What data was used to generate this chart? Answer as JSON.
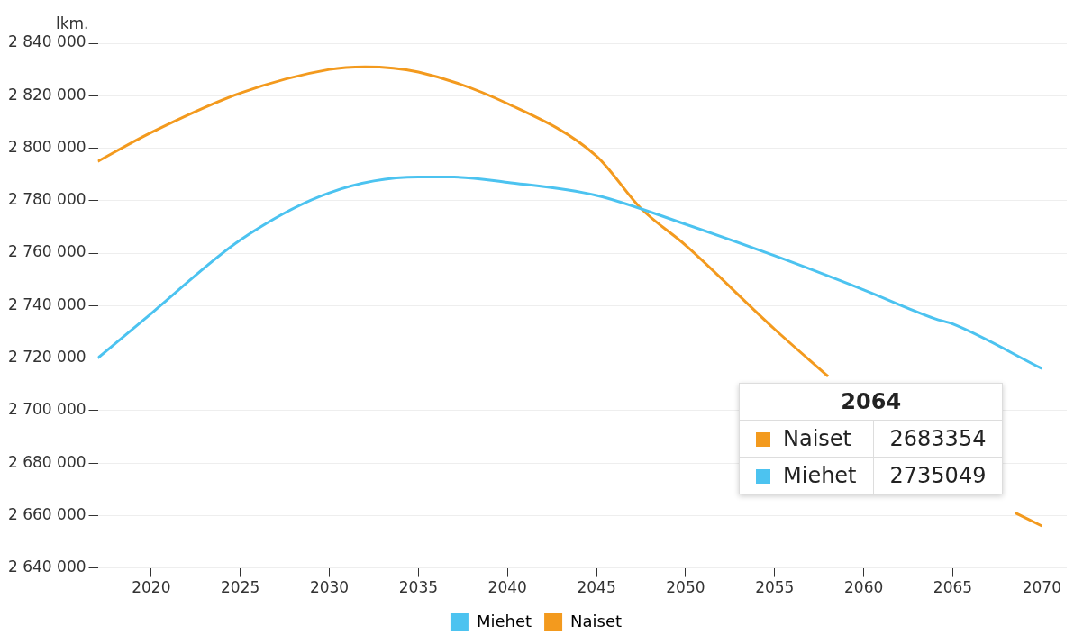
{
  "chart_data": {
    "type": "line",
    "ylabel": "lkm.",
    "xlim": [
      2017,
      2071.4
    ],
    "xticks": [
      2020,
      2025,
      2030,
      2035,
      2040,
      2045,
      2050,
      2055,
      2060,
      2065,
      2070
    ],
    "ylim": [
      2640000,
      2840000
    ],
    "yticks": [
      {
        "value": 2640000,
        "label": "2 640 000"
      },
      {
        "value": 2660000,
        "label": "2 660 000"
      },
      {
        "value": 2680000,
        "label": "2 680 000"
      },
      {
        "value": 2700000,
        "label": "2 700 000"
      },
      {
        "value": 2720000,
        "label": "2 720 000"
      },
      {
        "value": 2740000,
        "label": "2 740 000"
      },
      {
        "value": 2760000,
        "label": "2 760 000"
      },
      {
        "value": 2780000,
        "label": "2 780 000"
      },
      {
        "value": 2800000,
        "label": "2 800 000"
      },
      {
        "value": 2820000,
        "label": "2 820 000"
      },
      {
        "value": 2840000,
        "label": "2 840 000"
      }
    ],
    "grid": "y",
    "legend": "bottom",
    "marker": "none",
    "line_style": "solid",
    "series": [
      {
        "name": "Miehet",
        "color": "#4cc3f0",
        "x": [
          2017,
          2020,
          2025,
          2030,
          2035,
          2037,
          2040,
          2045,
          2050,
          2055,
          2060,
          2064,
          2065,
          2070
        ],
        "values": [
          2720000,
          2737000,
          2765000,
          2783000,
          2789000,
          2789000,
          2787000,
          2782000,
          2771000,
          2759000,
          2746000,
          2735000,
          2733000,
          2716000
        ]
      },
      {
        "name": "Naiset",
        "color": "#f39a1e",
        "x": [
          2017,
          2020,
          2025,
          2030,
          2032,
          2035,
          2040,
          2045,
          2047.5,
          2050,
          2055,
          2058,
          2064,
          2068.5,
          2070
        ],
        "values": [
          2795000,
          2806000,
          2821000,
          2830000,
          2831000,
          2829000,
          2817000,
          2797000,
          2777000,
          2763000,
          2731000,
          2713000,
          null,
          2661000,
          2656000
        ]
      }
    ],
    "annotations": [
      "2064",
      "Naiset",
      "2683354",
      "Miehet",
      "2735049"
    ]
  }
}
